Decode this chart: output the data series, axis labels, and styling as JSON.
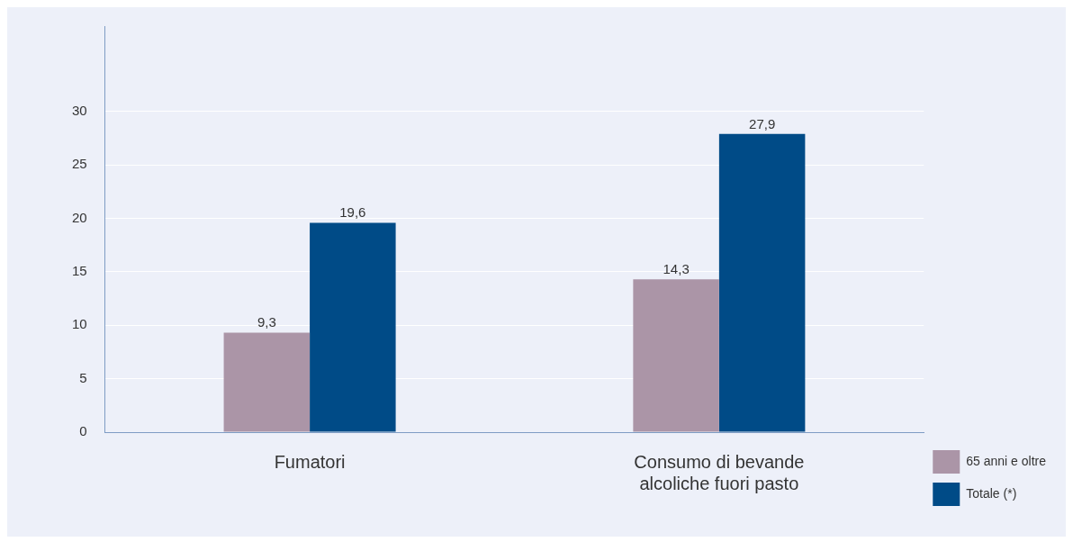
{
  "chart_data": {
    "type": "bar",
    "categories": [
      "Fumatori",
      "Consumo di bevande alcoliche fuori pasto"
    ],
    "series": [
      {
        "name": "65 anni e oltre",
        "color": "#ab95a7",
        "values": [
          9.3,
          14.3
        ],
        "value_labels": [
          "9,3",
          "14,3"
        ]
      },
      {
        "name": "Totale (*)",
        "color": "#004b87",
        "values": [
          19.6,
          27.9
        ],
        "value_labels": [
          "19,6",
          "27,9"
        ]
      }
    ],
    "ylim": [
      0,
      38
    ],
    "yticks": [
      0,
      5,
      10,
      15,
      20,
      25,
      30
    ],
    "grid": "y",
    "legend": "bottom right"
  }
}
